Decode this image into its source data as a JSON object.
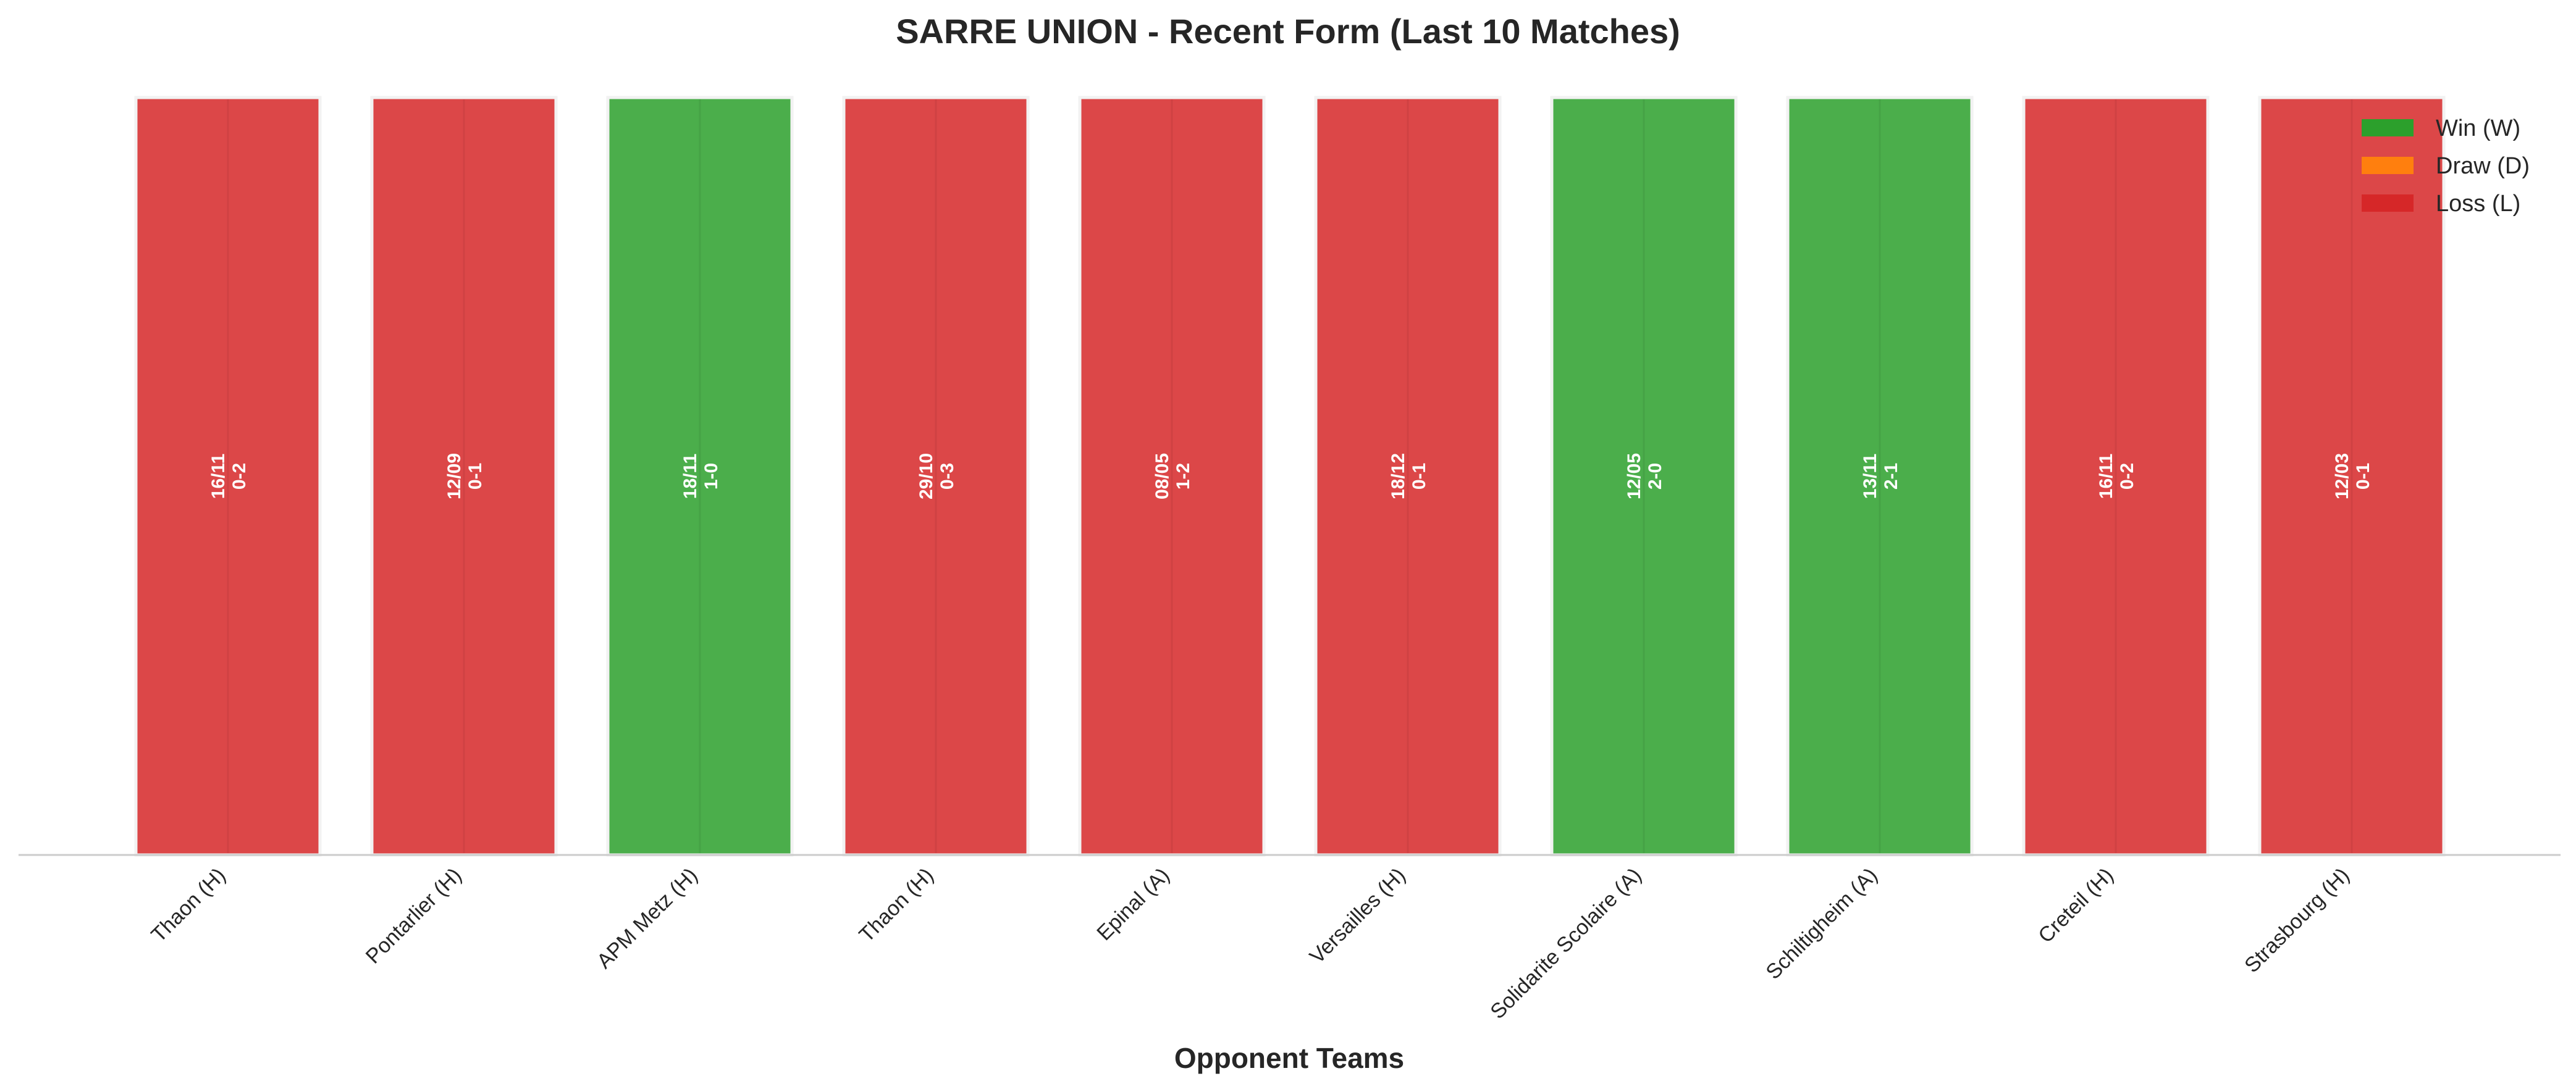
{
  "chart_data": {
    "type": "bar",
    "title": "SARRE UNION - Recent Form (Last 10 Matches)",
    "xlabel": "Opponent Teams",
    "ylabel": "",
    "ylim": [
      0,
      1
    ],
    "grid": false,
    "legend_placement": "top-right",
    "legend": [
      {
        "key": "W",
        "label": "Win (W)",
        "color": "#2ca02c"
      },
      {
        "key": "D",
        "label": "Draw (D)",
        "color": "#ff7f0e"
      },
      {
        "key": "L",
        "label": "Loss (L)",
        "color": "#d62728"
      }
    ],
    "categories": [
      "Thaon (H)",
      "Pontarlier (H)",
      "APM Metz (H)",
      "Thaon (H)",
      "Epinal (A)",
      "Versailles (H)",
      "Solidarite Scolaire (A)",
      "Schiltigheim (A)",
      "Creteil (H)",
      "Strasbourg (H)"
    ],
    "values": [
      1,
      1,
      1,
      1,
      1,
      1,
      1,
      1,
      1,
      1
    ],
    "results": [
      "L",
      "L",
      "W",
      "L",
      "L",
      "L",
      "W",
      "W",
      "L",
      "L"
    ],
    "dates": [
      "16/11",
      "12/09",
      "18/11",
      "29/10",
      "08/05",
      "18/12",
      "12/05",
      "13/11",
      "16/11",
      "12/03"
    ],
    "scores": [
      "0-2",
      "0-1",
      "1-0",
      "0-3",
      "1-2",
      "0-1",
      "2-0",
      "2-1",
      "0-2",
      "0-1"
    ]
  }
}
